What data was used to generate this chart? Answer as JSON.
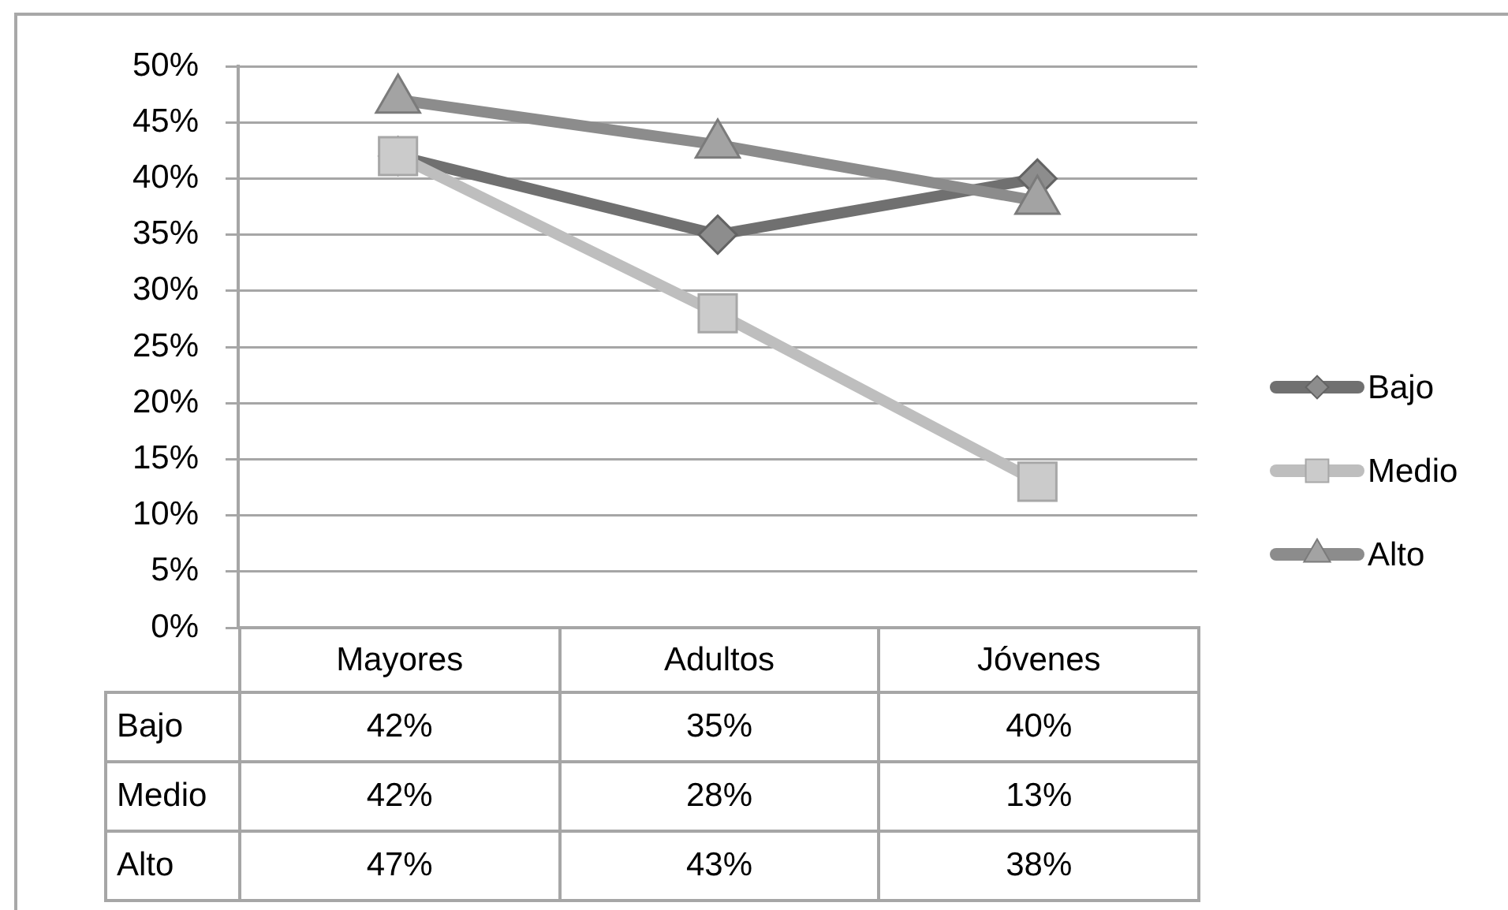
{
  "chart_data": {
    "type": "line",
    "categories": [
      "Mayores",
      "Adultos",
      "Jóvenes"
    ],
    "series": [
      {
        "name": "Bajo",
        "color": "#707070",
        "marker": "diamond",
        "values": [
          42,
          35,
          40
        ],
        "value_labels": [
          "42%",
          "35%",
          "40%"
        ]
      },
      {
        "name": "Medio",
        "color": "#bebebe",
        "marker": "square",
        "values": [
          42,
          28,
          13
        ],
        "value_labels": [
          "42%",
          "28%",
          "13%"
        ]
      },
      {
        "name": "Alto",
        "color": "#8c8c8c",
        "marker": "triangle",
        "values": [
          47,
          43,
          38
        ],
        "value_labels": [
          "47%",
          "43%",
          "38%"
        ]
      }
    ],
    "ylim": [
      0,
      50
    ],
    "yticks": [
      {
        "value": 0,
        "label": "0%"
      },
      {
        "value": 5,
        "label": "5%"
      },
      {
        "value": 10,
        "label": "10%"
      },
      {
        "value": 15,
        "label": "15%"
      },
      {
        "value": 20,
        "label": "20%"
      },
      {
        "value": 25,
        "label": "25%"
      },
      {
        "value": 30,
        "label": "30%"
      },
      {
        "value": 35,
        "label": "35%"
      },
      {
        "value": 40,
        "label": "40%"
      },
      {
        "value": 45,
        "label": "45%"
      },
      {
        "value": 50,
        "label": "50%"
      }
    ],
    "grid": "y",
    "legend": "right"
  }
}
